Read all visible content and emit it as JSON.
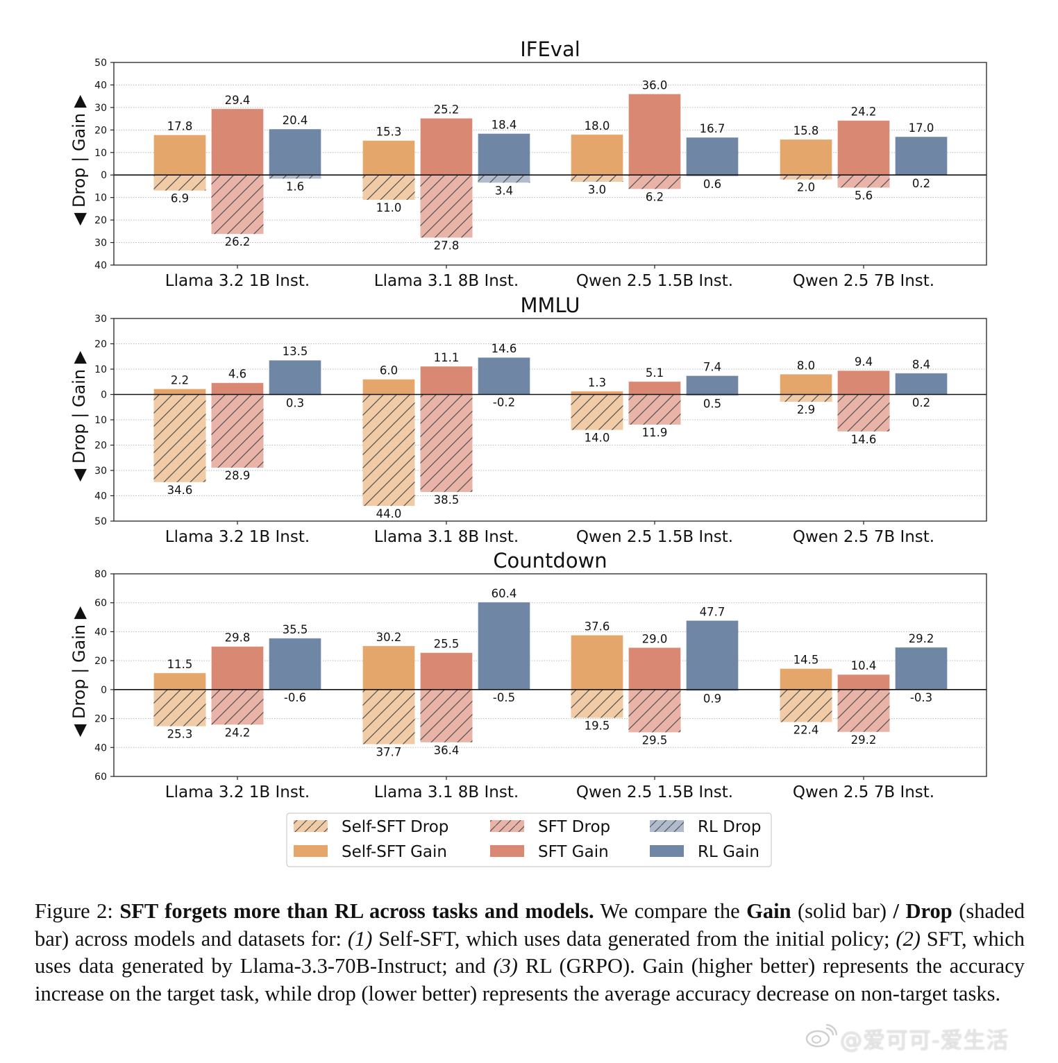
{
  "chart_data": [
    {
      "type": "bar",
      "title": "IFEval",
      "ylabel": "◀ Drop | Gain ▶",
      "categories": [
        "Llama 3.2 1B Inst.",
        "Llama 3.1 8B Inst.",
        "Qwen 2.5 1.5B Inst.",
        "Qwen 2.5 7B Inst."
      ],
      "ylim": [
        -40,
        50
      ],
      "yticks": [
        50,
        40,
        30,
        20,
        10,
        0,
        -10,
        -20,
        -30,
        -40
      ],
      "ytick_labels": [
        "50",
        "40",
        "30",
        "20",
        "10",
        "0",
        "10",
        "20",
        "30",
        "40"
      ],
      "grid": true,
      "series": [
        {
          "name": "Self-SFT Gain",
          "kind": "gain",
          "method": "self_sft",
          "values": [
            17.8,
            15.3,
            18.0,
            15.8
          ],
          "labels": [
            "17.8",
            "15.3",
            "18.0",
            "15.8"
          ]
        },
        {
          "name": "SFT Gain",
          "kind": "gain",
          "method": "sft",
          "values": [
            29.4,
            25.2,
            36.0,
            24.2
          ],
          "labels": [
            "29.4",
            "25.2",
            "36.0",
            "24.2"
          ]
        },
        {
          "name": "RL Gain",
          "kind": "gain",
          "method": "rl",
          "values": [
            20.4,
            18.4,
            16.7,
            17.0
          ],
          "labels": [
            "20.4",
            "18.4",
            "16.7",
            "17.0"
          ]
        },
        {
          "name": "Self-SFT Drop",
          "kind": "drop",
          "method": "self_sft",
          "values": [
            6.9,
            11.0,
            3.0,
            2.0
          ],
          "labels": [
            "6.9",
            "11.0",
            "3.0",
            "2.0"
          ]
        },
        {
          "name": "SFT Drop",
          "kind": "drop",
          "method": "sft",
          "values": [
            26.2,
            27.8,
            6.2,
            5.6
          ],
          "labels": [
            "26.2",
            "27.8",
            "6.2",
            "5.6"
          ]
        },
        {
          "name": "RL Drop",
          "kind": "drop",
          "method": "rl",
          "values": [
            1.6,
            3.4,
            0.6,
            0.2
          ],
          "labels": [
            "1.6",
            "3.4",
            "0.6",
            "0.2"
          ]
        }
      ]
    },
    {
      "type": "bar",
      "title": "MMLU",
      "ylabel": "◀ Drop | Gain ▶",
      "categories": [
        "Llama 3.2 1B Inst.",
        "Llama 3.1 8B Inst.",
        "Qwen 2.5 1.5B Inst.",
        "Qwen 2.5 7B Inst."
      ],
      "ylim": [
        -50,
        30
      ],
      "yticks": [
        30,
        20,
        10,
        0,
        -10,
        -20,
        -30,
        -40,
        -50
      ],
      "ytick_labels": [
        "30",
        "20",
        "10",
        "0",
        "10",
        "20",
        "30",
        "40",
        "50"
      ],
      "grid": true,
      "series": [
        {
          "name": "Self-SFT Gain",
          "kind": "gain",
          "method": "self_sft",
          "values": [
            2.2,
            6.0,
            1.3,
            8.0
          ],
          "labels": [
            "2.2",
            "6.0",
            "1.3",
            "8.0"
          ]
        },
        {
          "name": "SFT Gain",
          "kind": "gain",
          "method": "sft",
          "values": [
            4.6,
            11.1,
            5.1,
            9.4
          ],
          "labels": [
            "4.6",
            "11.1",
            "5.1",
            "9.4"
          ]
        },
        {
          "name": "RL Gain",
          "kind": "gain",
          "method": "rl",
          "values": [
            13.5,
            14.6,
            7.4,
            8.4
          ],
          "labels": [
            "13.5",
            "14.6",
            "7.4",
            "8.4"
          ]
        },
        {
          "name": "Self-SFT Drop",
          "kind": "drop",
          "method": "self_sft",
          "values": [
            34.6,
            44.0,
            14.0,
            2.9
          ],
          "labels": [
            "34.6",
            "44.0",
            "14.0",
            "2.9"
          ]
        },
        {
          "name": "SFT Drop",
          "kind": "drop",
          "method": "sft",
          "values": [
            28.9,
            38.5,
            11.9,
            14.6
          ],
          "labels": [
            "28.9",
            "38.5",
            "11.9",
            "14.6"
          ]
        },
        {
          "name": "RL Drop",
          "kind": "drop",
          "method": "rl",
          "values": [
            0.3,
            -0.2,
            0.5,
            0.2
          ],
          "labels": [
            "0.3",
            "-0.2",
            "0.5",
            "0.2"
          ]
        }
      ]
    },
    {
      "type": "bar",
      "title": "Countdown",
      "ylabel": "◀ Drop | Gain ▶",
      "categories": [
        "Llama 3.2 1B Inst.",
        "Llama 3.1 8B Inst.",
        "Qwen 2.5 1.5B Inst.",
        "Qwen 2.5 7B Inst."
      ],
      "ylim": [
        -60,
        80
      ],
      "yticks": [
        80,
        60,
        40,
        20,
        0,
        -20,
        -40,
        -60
      ],
      "ytick_labels": [
        "80",
        "60",
        "40",
        "20",
        "0",
        "20",
        "40",
        "60"
      ],
      "grid": true,
      "series": [
        {
          "name": "Self-SFT Gain",
          "kind": "gain",
          "method": "self_sft",
          "values": [
            11.5,
            30.2,
            37.6,
            14.5
          ],
          "labels": [
            "11.5",
            "30.2",
            "37.6",
            "14.5"
          ]
        },
        {
          "name": "SFT Gain",
          "kind": "gain",
          "method": "sft",
          "values": [
            29.8,
            25.5,
            29.0,
            10.4
          ],
          "labels": [
            "29.8",
            "25.5",
            "29.0",
            "10.4"
          ]
        },
        {
          "name": "RL Gain",
          "kind": "gain",
          "method": "rl",
          "values": [
            35.5,
            60.4,
            47.7,
            29.2
          ],
          "labels": [
            "35.5",
            "60.4",
            "47.7",
            "29.2"
          ]
        },
        {
          "name": "Self-SFT Drop",
          "kind": "drop",
          "method": "self_sft",
          "values": [
            25.3,
            37.7,
            19.5,
            22.4
          ],
          "labels": [
            "25.3",
            "37.7",
            "19.5",
            "22.4"
          ]
        },
        {
          "name": "SFT Drop",
          "kind": "drop",
          "method": "sft",
          "values": [
            24.2,
            36.4,
            29.5,
            29.2
          ],
          "labels": [
            "24.2",
            "36.4",
            "29.5",
            "29.2"
          ]
        },
        {
          "name": "RL Drop",
          "kind": "drop",
          "method": "rl",
          "values": [
            -0.6,
            -0.5,
            0.9,
            -0.3
          ],
          "labels": [
            "-0.6",
            "-0.5",
            "0.9",
            "-0.3"
          ]
        }
      ]
    }
  ],
  "colors": {
    "self_sft_gain": "#e5a66b",
    "sft_gain": "#d98873",
    "rl_gain": "#6f86a5",
    "self_sft_drop": "#f0cba6",
    "sft_drop": "#eab3a8",
    "rl_drop": "#b0bccd",
    "hatch": "#555555"
  },
  "legend": {
    "placement": "bottom-center",
    "items": [
      {
        "label": "Self-SFT Drop",
        "method": "self_sft",
        "kind": "drop"
      },
      {
        "label": "SFT Drop",
        "method": "sft",
        "kind": "drop"
      },
      {
        "label": "RL Drop",
        "method": "rl",
        "kind": "drop"
      },
      {
        "label": "Self-SFT Gain",
        "method": "self_sft",
        "kind": "gain"
      },
      {
        "label": "SFT Gain",
        "method": "sft",
        "kind": "gain"
      },
      {
        "label": "RL Gain",
        "method": "rl",
        "kind": "gain"
      }
    ]
  },
  "caption": {
    "prefix": "Figure 2: ",
    "bold_title": "SFT forgets more than RL across tasks and models.",
    "t1": " We compare the ",
    "gain_word": "Gain",
    "t2": " (solid bar) ",
    "slash": "/",
    "t3": " ",
    "drop_word": "Drop",
    "t4": " (shaded bar) across models and datasets for: ",
    "n1": "(1)",
    "t5": " Self-SFT, which uses data generated from the initial policy; ",
    "n2": "(2)",
    "t6": " SFT, which uses data generated by Llama-3.3-70B-Instruct; and ",
    "n3": "(3)",
    "t7": " RL (GRPO). Gain (higher better) represents the accuracy increase on the target task, while drop (lower better) represents the average accuracy decrease on non-target tasks."
  },
  "watermark": {
    "icon": "weibo-icon",
    "text": "@爱可可-爱生活"
  }
}
